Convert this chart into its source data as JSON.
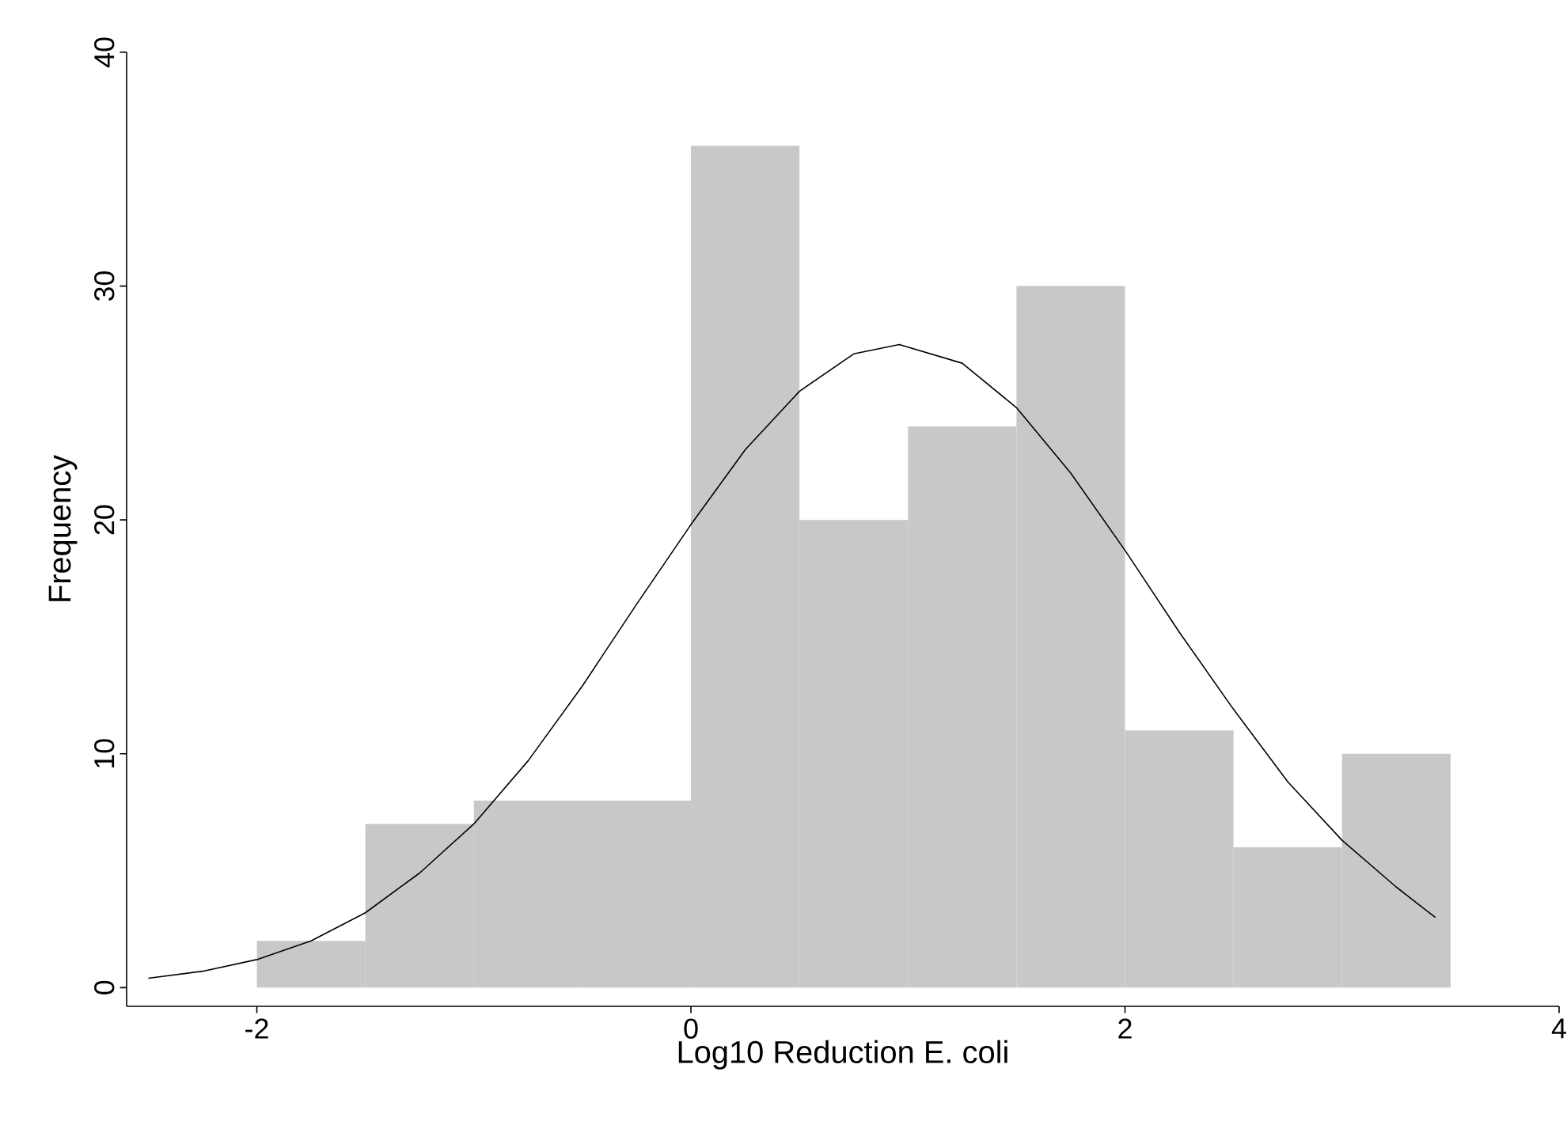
{
  "chart_data": {
    "type": "histogram",
    "xlabel": "Log10 Reduction E. coli",
    "ylabel": "Frequency",
    "xlim": [
      -2.6,
      4
    ],
    "ylim": [
      -0.8,
      40
    ],
    "xticks": [
      -2,
      0,
      2,
      4
    ],
    "yticks": [
      0,
      10,
      20,
      30,
      40
    ],
    "grid": false,
    "series": [
      {
        "color": "#c8c8c8",
        "bins": [
          -2,
          -1.5,
          -1,
          -0.5,
          0,
          0.5,
          1,
          1.5,
          2,
          2.5,
          3,
          3.5
        ],
        "values": [
          2,
          7,
          8,
          8,
          36,
          20,
          24,
          30,
          11,
          6,
          10
        ]
      },
      {
        "type": "line",
        "color": "#000000",
        "x": [
          -2.5,
          -2.25,
          -2,
          -1.75,
          -1.5,
          -1.25,
          -1,
          -0.75,
          -0.5,
          -0.25,
          0,
          0.25,
          0.5,
          0.75,
          0.96,
          1.25,
          1.5,
          1.75,
          2,
          2.25,
          2.5,
          2.75,
          3,
          3.25,
          3.43
        ],
        "values": [
          0.4,
          0.7,
          1.2,
          2,
          3.2,
          4.9,
          7,
          9.7,
          12.9,
          16.4,
          19.8,
          23,
          25.5,
          27.1,
          27.5,
          26.7,
          24.8,
          22,
          18.7,
          15.2,
          11.9,
          8.8,
          6.3,
          4.3,
          3
        ]
      }
    ]
  }
}
